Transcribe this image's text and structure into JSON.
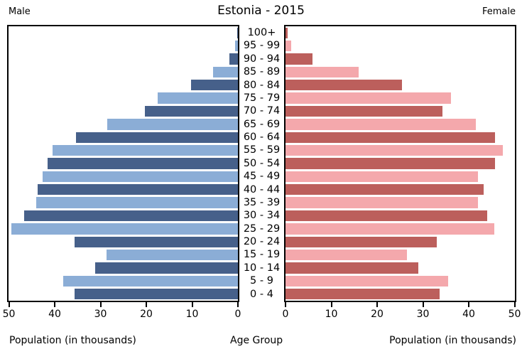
{
  "chart_data": {
    "type": "bar",
    "subtype": "population-pyramid",
    "title": "Estonia - 2015",
    "left_header": "Male",
    "right_header": "Female",
    "xlabel_left": "Population (in thousands)",
    "xlabel_center": "Age Group",
    "xlabel_right": "Population (in thousands)",
    "units": "thousands",
    "xlim": [
      0,
      50
    ],
    "grid": false,
    "age_groups": [
      "100+",
      "95 - 99",
      "90 - 94",
      "85 - 89",
      "80 - 84",
      "75 - 79",
      "70 - 74",
      "65 - 69",
      "60 - 64",
      "55 - 59",
      "50 - 54",
      "45 - 49",
      "40 - 44",
      "35 - 39",
      "30 - 34",
      "25 - 29",
      "20 - 24",
      "15 - 19",
      "10 - 14",
      "5 - 9",
      "0 - 4"
    ],
    "series": [
      {
        "name": "Male",
        "values": [
          0.2,
          0.6,
          1.8,
          5.4,
          10.2,
          17.5,
          20.3,
          28.5,
          35.3,
          40.5,
          41.5,
          42.6,
          43.7,
          44.0,
          46.6,
          49.4,
          35.7,
          28.7,
          31.1,
          38.2,
          35.7
        ]
      },
      {
        "name": "Female",
        "values": [
          0.4,
          1.2,
          5.9,
          16.0,
          25.5,
          36.2,
          34.3,
          41.5,
          45.7,
          47.4,
          45.7,
          42.0,
          43.2,
          42.0,
          44.1,
          45.6,
          33.1,
          26.5,
          29.0,
          35.5,
          33.6
        ]
      }
    ],
    "axis_left_ticks": [
      50,
      40,
      30,
      20,
      10,
      0
    ],
    "axis_right_ticks": [
      0,
      10,
      20,
      30,
      40,
      50
    ],
    "colors": {
      "male_dark": "#46608a",
      "male_light": "#8badd6",
      "female_dark": "#bc5f5c",
      "female_light": "#f4a8ac",
      "axis": "#000000",
      "background": "#ffffff"
    }
  }
}
